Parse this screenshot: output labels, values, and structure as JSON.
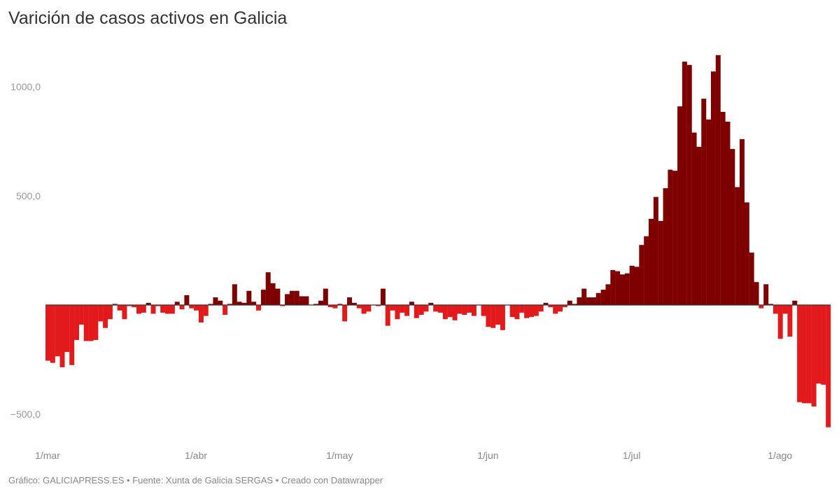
{
  "title": "Varición de casos activos en Galicia",
  "footer": "Gráfico: GALICIAPRESS.ES • Fuente: Xunta de Galicia SERGAS • Creado con Datawrapper",
  "colors": {
    "positive": "#7f0000",
    "negative": "#e31a1c",
    "axis": "#333333"
  },
  "chart_data": {
    "type": "bar",
    "title": "Varición de casos activos en Galicia",
    "xlabel": "",
    "ylabel": "",
    "ylim": [
      -560,
      1150
    ],
    "y_ticks": [
      {
        "value": 1000,
        "label": "1000,0"
      },
      {
        "value": 500,
        "label": "500,0"
      },
      {
        "value": -500,
        "label": "−500,0"
      }
    ],
    "x_ticks": [
      {
        "index": 0,
        "label": "1/mar"
      },
      {
        "index": 31,
        "label": "1/abr"
      },
      {
        "index": 61,
        "label": "1/may"
      },
      {
        "index": 92,
        "label": "1/jun"
      },
      {
        "index": 122,
        "label": "1/jul"
      },
      {
        "index": 153,
        "label": "1/ago"
      }
    ],
    "grid": false,
    "values": [
      -255,
      -265,
      -235,
      -285,
      -215,
      -275,
      -160,
      -90,
      -165,
      -165,
      -160,
      -75,
      -105,
      -65,
      5,
      -25,
      -65,
      -5,
      -10,
      -40,
      -35,
      10,
      -40,
      -5,
      -35,
      -40,
      -40,
      15,
      -20,
      45,
      -15,
      -25,
      -80,
      -50,
      5,
      35,
      20,
      -45,
      5,
      95,
      15,
      10,
      65,
      15,
      -25,
      70,
      150,
      100,
      75,
      -5,
      50,
      65,
      65,
      40,
      40,
      0,
      5,
      20,
      75,
      -10,
      -15,
      5,
      -75,
      35,
      10,
      -15,
      -40,
      -30,
      0,
      -5,
      75,
      -95,
      -25,
      -65,
      -35,
      -50,
      15,
      -60,
      -45,
      -30,
      10,
      -30,
      -35,
      -65,
      -55,
      -70,
      -40,
      -45,
      -35,
      -50,
      0,
      -50,
      -100,
      -105,
      -90,
      -115,
      0,
      -55,
      -65,
      -35,
      -60,
      -55,
      -50,
      -30,
      10,
      -10,
      -40,
      -30,
      -10,
      20,
      5,
      35,
      75,
      35,
      35,
      55,
      70,
      95,
      160,
      155,
      140,
      145,
      180,
      175,
      275,
      315,
      395,
      495,
      385,
      535,
      620,
      615,
      910,
      1115,
      1100,
      790,
      725,
      945,
      850,
      1070,
      1145,
      885,
      840,
      715,
      540,
      760,
      470,
      240,
      105,
      -15,
      95,
      5,
      -40,
      -155,
      -40,
      -145,
      20,
      -445,
      -450,
      -450,
      -465,
      -360,
      -365,
      -560
    ]
  }
}
